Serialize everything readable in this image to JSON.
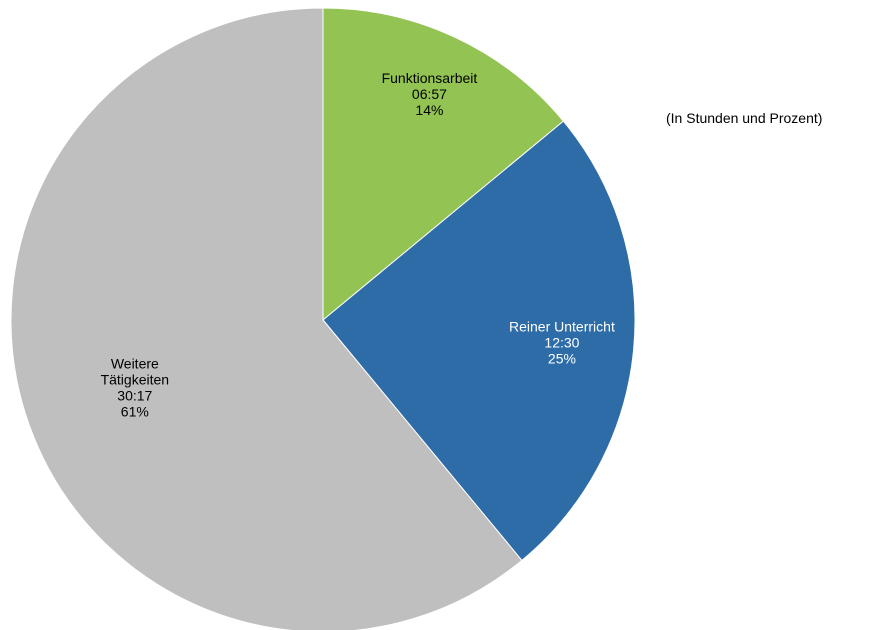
{
  "chart_data": {
    "type": "pie",
    "subtitle": "(In Stunden und Prozent)",
    "slices": [
      {
        "name": "Funktionsarbeit",
        "name_lines": [
          "Funktionsarbeit"
        ],
        "time": "06:57",
        "percent": 14,
        "percent_label": "14%",
        "color": "#92c353",
        "label_color": "#000000"
      },
      {
        "name": "Reiner Unterricht",
        "name_lines": [
          "Reiner Unterricht"
        ],
        "time": "12:30",
        "percent": 25,
        "percent_label": "25%",
        "color": "#2e6ca8",
        "label_color": "#ffffff"
      },
      {
        "name": "Weitere Tätigkeiten",
        "name_lines": [
          "Weitere",
          "Tätigkeiten"
        ],
        "time": "30:17",
        "percent": 61,
        "percent_label": "61%",
        "color": "#c0bfbf",
        "label_color": "#000000"
      }
    ],
    "start_angle": "12 o'clock",
    "direction": "clockwise",
    "legend": "none"
  }
}
